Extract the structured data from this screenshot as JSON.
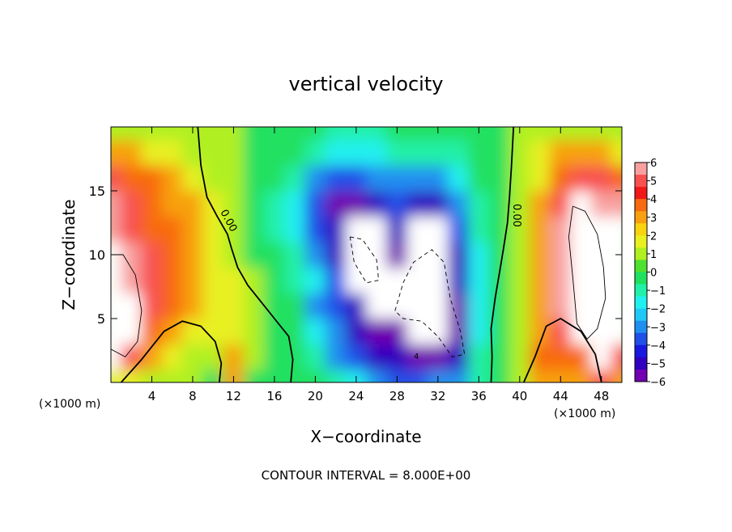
{
  "chart_data": {
    "type": "heatmap",
    "title": "vertical velocity",
    "xlabel": "X−coordinate",
    "ylabel": "Z−coordinate",
    "x_unit": "(×1000 m)",
    "x_unit_right": "(×1000 m)",
    "footer": "CONTOUR INTERVAL = 8.000E+00",
    "xlim": [
      0,
      50
    ],
    "ylim": [
      0,
      20
    ],
    "x_ticks": [
      4,
      8,
      12,
      16,
      20,
      24,
      28,
      32,
      36,
      40,
      44,
      48
    ],
    "y_ticks": [
      5,
      10,
      15
    ],
    "colorbar": {
      "min": -6,
      "max": 6,
      "labels": [
        "6",
        "5",
        "4",
        "3",
        "2",
        "1",
        "0",
        "−1",
        "−2",
        "−3",
        "−4",
        "−5",
        "−6"
      ],
      "colors": [
        "#f8a0a0",
        "#f85050",
        "#f01818",
        "#f86a10",
        "#f8a010",
        "#f8d410",
        "#e8f020",
        "#b0f020",
        "#50e030",
        "#20e060",
        "#20f0a8",
        "#20f0f0",
        "#20c8f8",
        "#2090f0",
        "#2050e8",
        "#1818e0",
        "#3000c0",
        "#7000b0"
      ]
    },
    "contour_labels": [
      "0.00",
      "0.00"
    ],
    "annotations": [
      "4"
    ],
    "data_grid": {
      "nx": 26,
      "nz": 11,
      "x": [
        0,
        2,
        4,
        6,
        8,
        10,
        12,
        14,
        16,
        18,
        20,
        22,
        24,
        26,
        28,
        30,
        32,
        34,
        36,
        38,
        40,
        42,
        44,
        46,
        48,
        50
      ],
      "z": [
        0,
        2,
        4,
        6,
        8,
        10,
        12,
        14,
        16,
        18,
        20
      ],
      "w": [
        [
          2,
          2,
          1,
          1,
          1,
          0,
          3,
          0,
          0,
          0,
          0,
          -1,
          -2,
          -3,
          -4,
          -4,
          -3,
          -3,
          -1,
          0,
          1,
          3,
          3,
          3,
          5,
          3
        ],
        [
          7,
          5,
          3,
          2,
          1,
          1,
          3,
          1,
          0,
          0,
          -1,
          -3,
          -4,
          -5,
          -5,
          -6,
          -6,
          -5,
          -1,
          0,
          1,
          4,
          4,
          4,
          7,
          5
        ],
        [
          7,
          7,
          4,
          3,
          2,
          2,
          2,
          1,
          0,
          0,
          -2,
          -3,
          -5,
          -6,
          -6,
          -7,
          -7,
          -6,
          -2,
          0,
          1,
          3,
          5,
          7,
          7,
          7
        ],
        [
          7,
          7,
          5,
          4,
          3,
          2,
          2,
          1,
          0,
          0,
          -3,
          -4,
          -5,
          -7,
          -7,
          -7,
          -7,
          -6,
          -2,
          0,
          1,
          3,
          6,
          7,
          7,
          7
        ],
        [
          7,
          6,
          5,
          4,
          3,
          2,
          2,
          1,
          0,
          -1,
          -2,
          -4,
          -7,
          -7,
          -7,
          -7,
          -7,
          -5,
          -2,
          0,
          1,
          3,
          6,
          7,
          7,
          7
        ],
        [
          7,
          6,
          5,
          4,
          3,
          2,
          1,
          0,
          0,
          -1,
          -3,
          -5,
          -7,
          -7,
          -6,
          -7,
          -7,
          -5,
          -2,
          0,
          1,
          3,
          6,
          7,
          7,
          7
        ],
        [
          6,
          5,
          4,
          4,
          3,
          2,
          1,
          0,
          -1,
          -2,
          -4,
          -5,
          -7,
          -7,
          -5,
          -7,
          -7,
          -4,
          -1,
          0,
          1,
          3,
          6,
          7,
          7,
          7
        ],
        [
          6,
          5,
          4,
          3,
          3,
          2,
          1,
          0,
          -1,
          -2,
          -4,
          -6,
          -6,
          -5,
          -4,
          -5,
          -5,
          -3,
          -1,
          0,
          1,
          3,
          5,
          7,
          6,
          6
        ],
        [
          5,
          4,
          4,
          3,
          2,
          1,
          1,
          0,
          0,
          -1,
          -3,
          -4,
          -4,
          -3,
          -3,
          -3,
          -3,
          -2,
          0,
          0,
          1,
          2,
          4,
          5,
          5,
          4
        ],
        [
          3,
          3,
          2,
          2,
          1,
          1,
          1,
          0,
          0,
          0,
          -1,
          -2,
          -2,
          -2,
          -1,
          -1,
          -1,
          -1,
          0,
          0,
          1,
          2,
          3,
          3,
          3,
          2
        ],
        [
          1,
          1,
          1,
          1,
          1,
          1,
          1,
          0,
          0,
          0,
          0,
          -1,
          -1,
          -1,
          0,
          0,
          0,
          0,
          0,
          0,
          1,
          1,
          1,
          1,
          1,
          1
        ]
      ]
    }
  }
}
